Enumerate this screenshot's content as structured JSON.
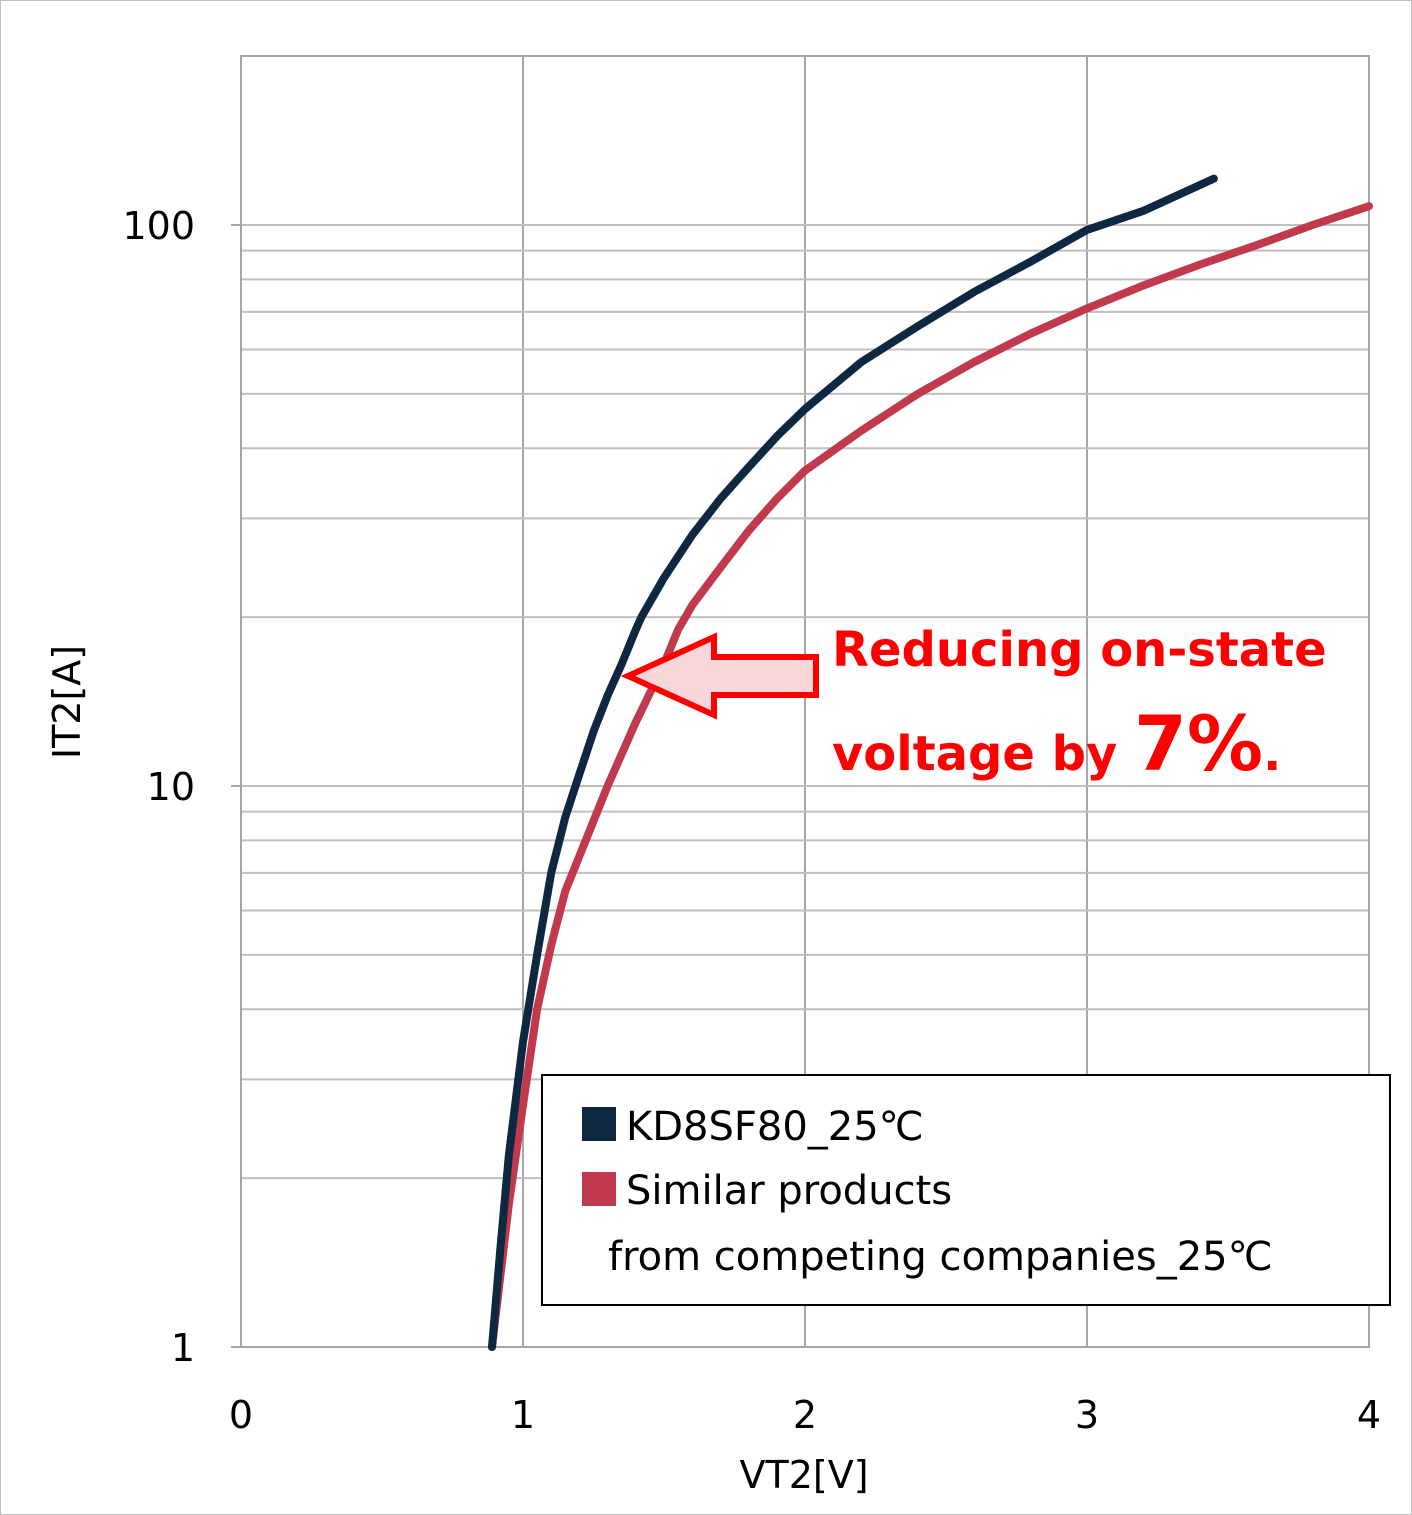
{
  "chart_data": {
    "type": "line",
    "xlabel": "VT2[V]",
    "ylabel": "IT2[A]",
    "xlim": [
      0,
      4
    ],
    "ylim": [
      1,
      200
    ],
    "yscale": "log",
    "grid": true,
    "x_ticks": [
      "0",
      "1",
      "2",
      "3",
      "4"
    ],
    "y_ticks": [
      "1",
      "10",
      "100"
    ],
    "legend": {
      "placement": "bottom-right",
      "entries": [
        {
          "label": "KD8SF80_25℃"
        },
        {
          "label_line1": "Similar products",
          "label_line2": "from competing companies_25℃"
        }
      ]
    },
    "series": [
      {
        "name": "KD8SF80_25℃",
        "color": "#0e2841",
        "points": [
          [
            0.89,
            1.0
          ],
          [
            0.92,
            1.5
          ],
          [
            0.95,
            2.2
          ],
          [
            1.0,
            3.5
          ],
          [
            1.05,
            5.0
          ],
          [
            1.1,
            7.0
          ],
          [
            1.15,
            8.8
          ],
          [
            1.2,
            10.5
          ],
          [
            1.25,
            12.5
          ],
          [
            1.3,
            14.5
          ],
          [
            1.35,
            16.5
          ],
          [
            1.4,
            19.0
          ],
          [
            1.42,
            20.0
          ],
          [
            1.5,
            23.5
          ],
          [
            1.6,
            28.0
          ],
          [
            1.7,
            32.5
          ],
          [
            1.8,
            37.0
          ],
          [
            1.9,
            42.0
          ],
          [
            2.0,
            47.0
          ],
          [
            2.2,
            57.0
          ],
          [
            2.4,
            66.0
          ],
          [
            2.6,
            76.0
          ],
          [
            2.8,
            86.0
          ],
          [
            3.0,
            98.0
          ],
          [
            3.2,
            106.0
          ],
          [
            3.45,
            121.0
          ]
        ]
      },
      {
        "name": "Similar products from competing companies_25℃",
        "color": "#c0394d",
        "points": [
          [
            0.89,
            1.0
          ],
          [
            0.95,
            1.8
          ],
          [
            1.0,
            2.7
          ],
          [
            1.05,
            4.0
          ],
          [
            1.1,
            5.2
          ],
          [
            1.15,
            6.5
          ],
          [
            1.2,
            7.5
          ],
          [
            1.3,
            10.0
          ],
          [
            1.4,
            13.0
          ],
          [
            1.5,
            16.5
          ],
          [
            1.55,
            19.0
          ],
          [
            1.6,
            21.0
          ],
          [
            1.7,
            24.5
          ],
          [
            1.8,
            28.5
          ],
          [
            1.9,
            32.5
          ],
          [
            2.0,
            36.5
          ],
          [
            2.2,
            43.0
          ],
          [
            2.4,
            50.0
          ],
          [
            2.6,
            57.0
          ],
          [
            2.8,
            64.0
          ],
          [
            3.0,
            71.0
          ],
          [
            3.2,
            78.0
          ],
          [
            3.4,
            85.0
          ],
          [
            3.6,
            92.0
          ],
          [
            3.8,
            100.0
          ],
          [
            4.0,
            108.0
          ]
        ]
      }
    ],
    "annotation": {
      "line1": "Reducing on-state",
      "line2_prefix": "voltage by ",
      "line2_value": "7%",
      "line2_suffix": ".",
      "color": "#ff0000",
      "arrow_fill": "#f8d7da",
      "arrow_direction": "left"
    }
  }
}
